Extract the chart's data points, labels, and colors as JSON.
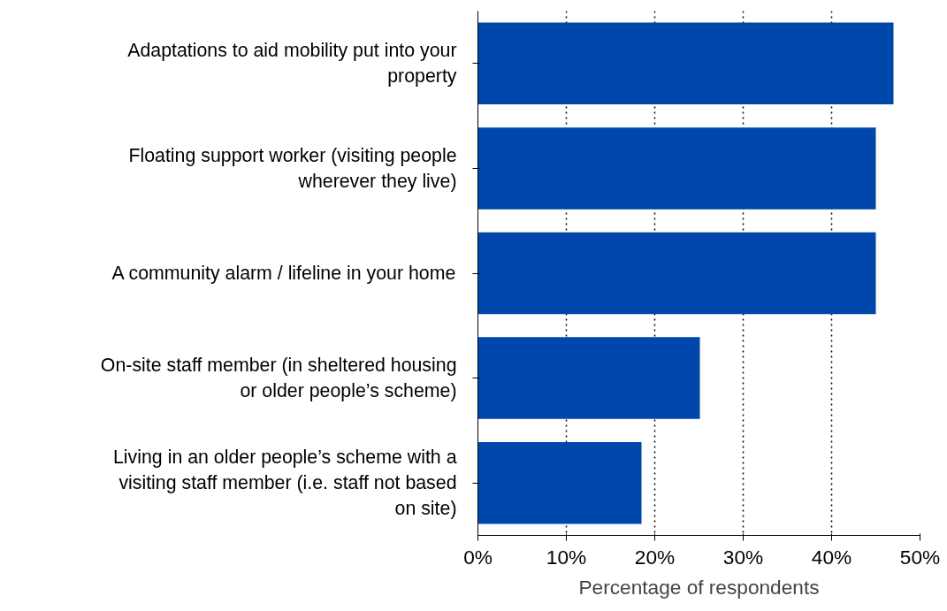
{
  "chart_data": {
    "type": "bar",
    "orientation": "horizontal",
    "xlabel": "Percentage of respondents",
    "categories": [
      "Adaptations to aid mobility put into your property",
      "Floating support worker (visiting people wherever they live)",
      "A community alarm / lifeline in your home",
      "On-site staff member (in sheltered housing or older people’s scheme)",
      "Living in an older people’s scheme with a visiting staff member (i.e. staff not based on site)"
    ],
    "values": [
      47,
      45,
      45,
      25.1,
      18.5
    ],
    "color": "#0047ab",
    "xlim": [
      0,
      50
    ],
    "xticks": [
      {
        "value": 0,
        "label": "0%"
      },
      {
        "value": 10,
        "label": "10%"
      },
      {
        "value": 20,
        "label": "20%"
      },
      {
        "value": 30,
        "label": "30%"
      },
      {
        "value": 40,
        "label": "40%"
      },
      {
        "value": 50,
        "label": "50%"
      }
    ],
    "grid": "x"
  }
}
